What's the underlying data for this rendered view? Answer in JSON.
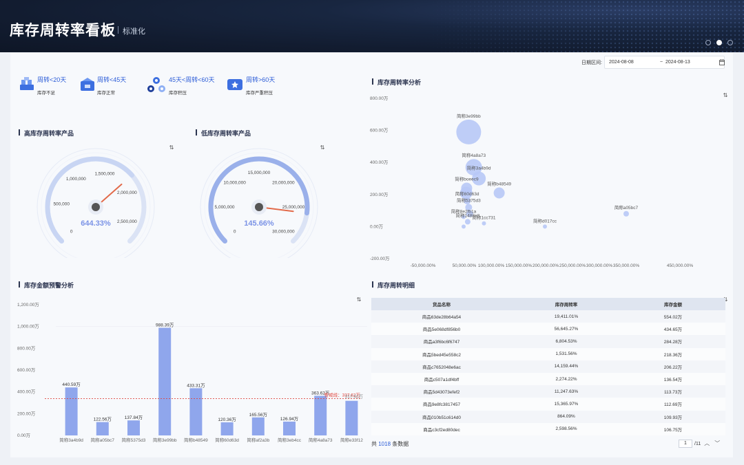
{
  "header": {
    "title": "库存周转率看板",
    "subtitle": "标准化"
  },
  "date_range": {
    "label": "日期区间:",
    "start": "2024-08-08",
    "separator": "~",
    "end": "2024-08-13"
  },
  "legend": [
    {
      "title": "周转<20天",
      "desc": "库存不足",
      "icon": "warehouse-icon"
    },
    {
      "title": "周转<45天",
      "desc": "库存正常",
      "icon": "building-icon"
    },
    {
      "title": "45天<周转<60天",
      "desc": "库存积压",
      "icon": "network-icon"
    },
    {
      "title": "周转>60天",
      "desc": "库存严重积压",
      "icon": "star-box-icon"
    }
  ],
  "gauges": {
    "high": {
      "title": "高库存周转率产品",
      "value": "644.33%",
      "ticks": [
        "0",
        "500,000",
        "1,000,000",
        "1,500,000",
        "2,000,000",
        "2,500,000"
      ],
      "fraction": 0.68
    },
    "low": {
      "title": "低库存周转率产品",
      "value": "145.66%",
      "ticks": [
        "0",
        "5,000,000",
        "10,000,000",
        "15,000,000",
        "20,000,000",
        "25,000,000",
        "30,000,000"
      ],
      "fraction": 0.86
    }
  },
  "scatter": {
    "title": "库存周转率分析",
    "y_ticks": [
      "800.00万",
      "600.00万",
      "400.00万",
      "200.00万",
      "0.00万",
      "-200.00万"
    ],
    "x_ticks": [
      "-50,000.00%",
      "50,000.00%",
      "100,000.00%",
      "150,000.00%",
      "200,000.00%",
      "250,000.00%",
      "300,000.00%",
      "350,000.00%",
      "450,000.00%"
    ]
  },
  "bar": {
    "title": "库存金额预警分析",
    "y_ticks": [
      "1,200.00万",
      "1,000.00万",
      "800.00万",
      "600.00万",
      "400.00万",
      "200.00万",
      "0.00万"
    ],
    "warning_label": "警戒线：337.62万",
    "overlap_label": "317.62万"
  },
  "detail": {
    "title": "库存周转明细",
    "headers": [
      "货品名称",
      "库存周转率",
      "库存金额"
    ],
    "rows": [
      [
        "商品63de28b64a54",
        "19,411.01%",
        "554.02万"
      ],
      [
        "商品5e068df856b0",
        "56,645.27%",
        "434.65万"
      ],
      [
        "商品a3f6bc6f6747",
        "6,804.53%",
        "284.28万"
      ],
      [
        "商品5bed45e558c2",
        "1,531.56%",
        "218.36万"
      ],
      [
        "商品c7652048e6ac",
        "14,159.44%",
        "206.22万"
      ],
      [
        "商品c507a1df4bff",
        "2,274.22%",
        "136.54万"
      ],
      [
        "商品5d43073efef2",
        "11,247.63%",
        "113.73万"
      ],
      [
        "商品9e8fc3817457",
        "15,365.97%",
        "112.69万"
      ],
      [
        "商品010b51c614d0",
        "864.09%",
        "109.93万"
      ],
      [
        "商品c3cf2ed80dec",
        "2,598.56%",
        "106.75万"
      ]
    ],
    "footer_prefix": "共",
    "total": "1018",
    "footer_suffix": "条数据",
    "page": "1",
    "page_total": "/11"
  },
  "chart_data": [
    {
      "type": "scatter",
      "title": "库存周转率分析",
      "x_unit": "%",
      "y_unit": "万",
      "ylim": [
        -200,
        800
      ],
      "points": [
        {
          "label": "简称3e99bb",
          "x": 40000,
          "y": 590,
          "size": 18
        },
        {
          "label": "简称4a8a73",
          "x": 50000,
          "y": 370,
          "size": 12
        },
        {
          "label": "简称3a4b9d",
          "x": 60000,
          "y": 300,
          "size": 10
        },
        {
          "label": "简称boeec9",
          "x": 36000,
          "y": 240,
          "size": 8
        },
        {
          "label": "",
          "x": 35000,
          "y": 210,
          "size": 9
        },
        {
          "label": "简称b48549",
          "x": 100000,
          "y": 210,
          "size": 8
        },
        {
          "label": "简称60d63d",
          "x": 37000,
          "y": 160,
          "size": 5
        },
        {
          "label": "简称5375d3",
          "x": 40000,
          "y": 120,
          "size": 5
        },
        {
          "label": "",
          "x": 42000,
          "y": 80,
          "size": 5
        },
        {
          "label": "简称8e2fb1a",
          "x": 30000,
          "y": 60,
          "size": 3
        },
        {
          "label": "简称1488a8",
          "x": 38000,
          "y": 30,
          "size": 4
        },
        {
          "label": "",
          "x": 30000,
          "y": 0,
          "size": 3
        },
        {
          "label": "简称1cc731",
          "x": 70000,
          "y": 20,
          "size": 3
        },
        {
          "label": "简称d017cc",
          "x": 190000,
          "y": 0,
          "size": 3
        },
        {
          "label": "简称a05bc7",
          "x": 350000,
          "y": 80,
          "size": 4
        }
      ]
    },
    {
      "type": "bar",
      "title": "库存金额预警分析",
      "ylim": [
        0,
        1200
      ],
      "categories": [
        "简称3a4b9d",
        "简称a05bc7",
        "简称5375d3",
        "简称3e99bb",
        "简称b48549",
        "简称60d63d",
        "简称af2a3b",
        "简称3eb4cc",
        "简称4a8a73",
        "简称e33f12"
      ],
      "values": [
        440.59,
        122.56,
        137.84,
        988.39,
        433.31,
        120.36,
        165.56,
        126.94,
        363.62,
        317.62
      ],
      "value_labels": [
        "440.59万",
        "122.56万",
        "137.84万",
        "988.39万",
        "433.31万",
        "120.36万",
        "165.56万",
        "126.94万",
        "363.62万",
        ""
      ],
      "warning_line": 337.62
    }
  ],
  "colors": {
    "accent": "#2a5bd7",
    "bar": "#8fa6ec",
    "bubble": "#b7c8f6",
    "warning": "#e0443c",
    "header": "#141f35"
  }
}
